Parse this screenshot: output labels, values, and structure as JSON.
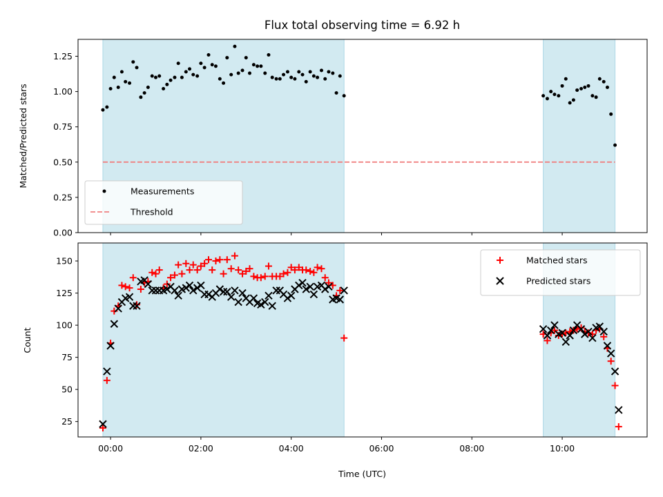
{
  "chart_data": {
    "title": "Flux total observing time = 6.92 h",
    "xlabel": "Time (UTC)",
    "x_ticks": [
      "00:00",
      "02:00",
      "04:00",
      "06:00",
      "08:00",
      "10:00"
    ],
    "x_tick_values": [
      0,
      2,
      4,
      6,
      8,
      10
    ],
    "xlim": [
      -0.72,
      11.88
    ],
    "shaded_intervals": [
      [
        -0.17,
        5.17
      ],
      [
        9.58,
        11.17
      ]
    ],
    "shade_color": "#add8e6",
    "panels": [
      {
        "type": "scatter",
        "ylabel": "Matched/Predicted stars",
        "ylim": [
          0,
          1.37
        ],
        "y_ticks": [
          0.0,
          0.25,
          0.5,
          0.75,
          1.0,
          1.25
        ],
        "y_tick_labels": [
          "0.00",
          "0.25",
          "0.50",
          "0.75",
          "1.00",
          "1.25"
        ],
        "legend_position": "lower-left",
        "series": [
          {
            "name": "Measurements",
            "color": "#000000",
            "marker": "dot",
            "x": [
              -0.17,
              -0.08,
              0.0,
              0.08,
              0.17,
              0.25,
              0.33,
              0.42,
              0.5,
              0.58,
              0.67,
              0.75,
              0.83,
              0.92,
              1.0,
              1.08,
              1.17,
              1.25,
              1.33,
              1.42,
              1.5,
              1.58,
              1.67,
              1.75,
              1.83,
              1.92,
              2.0,
              2.08,
              2.17,
              2.25,
              2.33,
              2.42,
              2.5,
              2.58,
              2.67,
              2.75,
              2.83,
              2.92,
              3.0,
              3.08,
              3.17,
              3.25,
              3.33,
              3.42,
              3.5,
              3.58,
              3.67,
              3.75,
              3.83,
              3.92,
              4.0,
              4.08,
              4.17,
              4.25,
              4.33,
              4.42,
              4.5,
              4.58,
              4.67,
              4.75,
              4.83,
              4.92,
              5.0,
              5.08,
              5.17,
              9.58,
              9.67,
              9.75,
              9.83,
              9.92,
              10.0,
              10.08,
              10.17,
              10.25,
              10.33,
              10.42,
              10.5,
              10.58,
              10.67,
              10.75,
              10.83,
              10.92,
              11.0,
              11.08,
              11.17
            ],
            "y": [
              0.87,
              0.89,
              1.02,
              1.1,
              1.03,
              1.14,
              1.07,
              1.06,
              1.21,
              1.17,
              0.96,
              0.99,
              1.03,
              1.11,
              1.1,
              1.11,
              1.02,
              1.05,
              1.08,
              1.1,
              1.2,
              1.1,
              1.14,
              1.16,
              1.12,
              1.11,
              1.2,
              1.17,
              1.26,
              1.19,
              1.18,
              1.09,
              1.06,
              1.24,
              1.12,
              1.32,
              1.13,
              1.15,
              1.24,
              1.13,
              1.19,
              1.18,
              1.18,
              1.13,
              1.26,
              1.1,
              1.09,
              1.09,
              1.12,
              1.14,
              1.1,
              1.09,
              1.14,
              1.12,
              1.07,
              1.14,
              1.11,
              1.1,
              1.15,
              1.09,
              1.14,
              1.13,
              0.99,
              1.11,
              0.97,
              0.97,
              0.95,
              1.0,
              0.98,
              0.97,
              1.04,
              1.09,
              0.92,
              0.94,
              1.01,
              1.02,
              1.03,
              1.04,
              0.97,
              0.96,
              1.09,
              1.07,
              1.03,
              0.84,
              0.62
            ]
          },
          {
            "name": "Threshold",
            "color": "#f08080",
            "style": "dashed",
            "x": [
              -0.17,
              11.17
            ],
            "y": [
              0.5,
              0.5
            ]
          }
        ]
      },
      {
        "type": "scatter",
        "ylabel": "Count",
        "ylim": [
          13,
          164
        ],
        "y_ticks": [
          25,
          50,
          75,
          100,
          125,
          150
        ],
        "y_tick_labels": [
          "25",
          "50",
          "75",
          "100",
          "125",
          "150"
        ],
        "legend_position": "top-right",
        "series": [
          {
            "name": "Matched stars",
            "color": "#ff0000",
            "marker": "plus",
            "x": [
              -0.17,
              -0.08,
              0.0,
              0.08,
              0.17,
              0.25,
              0.33,
              0.42,
              0.5,
              0.58,
              0.67,
              0.75,
              0.83,
              0.92,
              1.0,
              1.08,
              1.17,
              1.25,
              1.33,
              1.42,
              1.5,
              1.58,
              1.67,
              1.75,
              1.83,
              1.92,
              2.0,
              2.08,
              2.17,
              2.25,
              2.33,
              2.42,
              2.5,
              2.58,
              2.67,
              2.75,
              2.83,
              2.92,
              3.0,
              3.08,
              3.17,
              3.25,
              3.33,
              3.42,
              3.5,
              3.58,
              3.67,
              3.75,
              3.83,
              3.92,
              4.0,
              4.08,
              4.17,
              4.25,
              4.33,
              4.42,
              4.5,
              4.58,
              4.67,
              4.75,
              4.83,
              4.92,
              5.0,
              5.08,
              5.17,
              9.58,
              9.67,
              9.75,
              9.83,
              9.92,
              10.0,
              10.08,
              10.17,
              10.25,
              10.33,
              10.42,
              10.5,
              10.58,
              10.67,
              10.75,
              10.83,
              10.92,
              11.0,
              11.08,
              11.17
            ],
            "y": [
              20,
              57,
              86,
              111,
              115,
              131,
              130,
              129,
              137,
              116,
              128,
              133,
              134,
              141,
              140,
              143,
              129,
              132,
              137,
              139,
              147,
              140,
              148,
              143,
              147,
              143,
              146,
              148,
              151,
              143,
              150,
              151,
              140,
              151,
              144,
              154,
              143,
              140,
              142,
              144,
              138,
              137,
              137,
              138,
              146,
              138,
              138,
              138,
              140,
              141,
              145,
              143,
              145,
              143,
              143,
              142,
              141,
              145,
              144,
              137,
              133,
              131,
              123,
              127,
              90,
              93,
              88,
              94,
              96,
              92,
              93,
              94,
              95,
              96,
              97,
              98,
              95,
              94,
              93,
              96,
              97,
              91,
              82,
              72,
              53
            ],
            "x_extra": [
              11.25
            ],
            "y_extra": [
              21
            ]
          },
          {
            "name": "Predicted stars",
            "color": "#000000",
            "marker": "x",
            "x": [
              -0.17,
              -0.08,
              0.0,
              0.08,
              0.17,
              0.25,
              0.33,
              0.42,
              0.5,
              0.58,
              0.67,
              0.75,
              0.83,
              0.92,
              1.0,
              1.08,
              1.17,
              1.25,
              1.33,
              1.42,
              1.5,
              1.58,
              1.67,
              1.75,
              1.83,
              1.92,
              2.0,
              2.08,
              2.17,
              2.25,
              2.33,
              2.42,
              2.5,
              2.58,
              2.67,
              2.75,
              2.83,
              2.92,
              3.0,
              3.08,
              3.17,
              3.25,
              3.33,
              3.42,
              3.5,
              3.58,
              3.67,
              3.75,
              3.83,
              3.92,
              4.0,
              4.08,
              4.17,
              4.25,
              4.33,
              4.42,
              4.5,
              4.58,
              4.67,
              4.75,
              4.83,
              4.92,
              5.0,
              5.08,
              5.17,
              9.58,
              9.67,
              9.75,
              9.83,
              9.92,
              10.0,
              10.08,
              10.17,
              10.25,
              10.33,
              10.42,
              10.5,
              10.58,
              10.67,
              10.75,
              10.83,
              10.92,
              11.0,
              11.08,
              11.17
            ],
            "y": [
              23,
              64,
              84,
              101,
              113,
              118,
              121,
              122,
              115,
              115,
              134,
              135,
              132,
              127,
              127,
              127,
              127,
              128,
              130,
              127,
              123,
              128,
              129,
              131,
              127,
              129,
              131,
              124,
              124,
              122,
              125,
              128,
              126,
              126,
              122,
              127,
              118,
              125,
              121,
              118,
              121,
              117,
              116,
              118,
              123,
              115,
              127,
              127,
              124,
              121,
              123,
              128,
              131,
              133,
              128,
              130,
              124,
              130,
              131,
              128,
              130,
              120,
              121,
              120,
              127,
              97,
              92,
              96,
              100,
              93,
              94,
              87,
              92,
              96,
              100,
              97,
              93,
              95,
              90,
              98,
              99,
              95,
              84,
              78,
              64
            ],
            "x_extra": [
              11.25
            ],
            "y_extra": [
              34
            ]
          }
        ]
      }
    ]
  }
}
